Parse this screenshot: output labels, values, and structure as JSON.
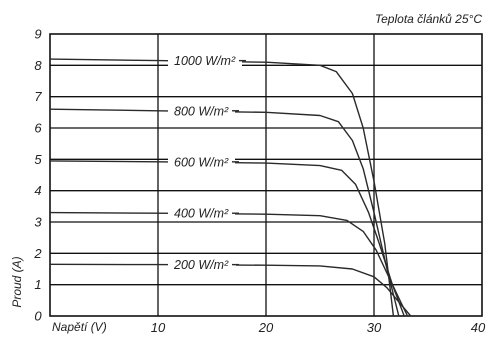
{
  "chart_data": {
    "type": "line",
    "title": "",
    "annotation": "Teplota článků 25°C",
    "xlabel": "Napětí (V)",
    "ylabel": "Proud (A)",
    "xlim": [
      0,
      40
    ],
    "ylim": [
      0,
      9
    ],
    "x_ticks": [
      "10",
      "20",
      "30",
      "40"
    ],
    "y_ticks": [
      "0",
      "1",
      "2",
      "3",
      "4",
      "5",
      "6",
      "7",
      "8",
      "9"
    ],
    "grid": true,
    "series": [
      {
        "name": "1000 W/m²",
        "points": [
          [
            0,
            8.2
          ],
          [
            10,
            8.15
          ],
          [
            20,
            8.1
          ],
          [
            25,
            8.0
          ],
          [
            26.5,
            7.8
          ],
          [
            28,
            7.1
          ],
          [
            29,
            6.0
          ],
          [
            30,
            4.3
          ],
          [
            31,
            2.3
          ],
          [
            31.8,
            0
          ]
        ]
      },
      {
        "name": "800 W/m²",
        "points": [
          [
            0,
            6.6
          ],
          [
            10,
            6.55
          ],
          [
            20,
            6.5
          ],
          [
            25,
            6.4
          ],
          [
            26.7,
            6.2
          ],
          [
            28,
            5.6
          ],
          [
            29,
            4.7
          ],
          [
            30,
            3.3
          ],
          [
            31.2,
            1.5
          ],
          [
            32.3,
            0
          ]
        ]
      },
      {
        "name": "600 W/m²",
        "points": [
          [
            0,
            4.95
          ],
          [
            10,
            4.92
          ],
          [
            20,
            4.88
          ],
          [
            25,
            4.8
          ],
          [
            27,
            4.65
          ],
          [
            28.3,
            4.2
          ],
          [
            29.5,
            3.3
          ],
          [
            30.5,
            2.3
          ],
          [
            31.7,
            1.0
          ],
          [
            32.8,
            0
          ]
        ]
      },
      {
        "name": "400 W/m²",
        "points": [
          [
            0,
            3.3
          ],
          [
            10,
            3.28
          ],
          [
            20,
            3.25
          ],
          [
            25,
            3.2
          ],
          [
            27.5,
            3.05
          ],
          [
            29,
            2.7
          ],
          [
            30.2,
            2.1
          ],
          [
            31.3,
            1.3
          ],
          [
            32.4,
            0.5
          ],
          [
            33.1,
            0
          ]
        ]
      },
      {
        "name": "200 W/m²",
        "points": [
          [
            0,
            1.65
          ],
          [
            10,
            1.64
          ],
          [
            20,
            1.62
          ],
          [
            25,
            1.6
          ],
          [
            28,
            1.5
          ],
          [
            30,
            1.25
          ],
          [
            31.2,
            0.9
          ],
          [
            32.3,
            0.45
          ],
          [
            33.4,
            0
          ]
        ]
      }
    ]
  }
}
